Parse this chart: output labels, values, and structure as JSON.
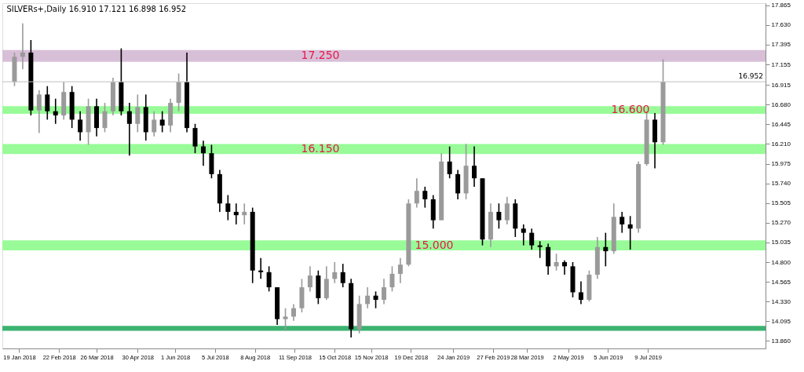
{
  "chart_data": {
    "type": "candlestick",
    "title": "SILVERs+,Daily  16.910 17.121 16.898 16.952",
    "x": [
      "2018-01-15",
      "2018-01-22",
      "2018-01-29",
      "2018-02-05",
      "2018-02-12",
      "2018-02-19",
      "2018-02-26",
      "2018-03-05",
      "2018-03-12",
      "2018-03-19",
      "2018-03-26",
      "2018-04-02",
      "2018-04-09",
      "2018-04-16",
      "2018-04-23",
      "2018-04-30",
      "2018-05-07",
      "2018-05-14",
      "2018-05-21",
      "2018-05-28",
      "2018-06-04",
      "2018-06-11",
      "2018-06-18",
      "2018-06-25",
      "2018-07-02",
      "2018-07-09",
      "2018-07-16",
      "2018-07-23",
      "2018-07-30",
      "2018-08-06",
      "2018-08-13",
      "2018-08-20",
      "2018-08-27",
      "2018-09-03",
      "2018-09-10",
      "2018-09-17",
      "2018-09-24",
      "2018-10-01",
      "2018-10-08",
      "2018-10-15",
      "2018-10-22",
      "2018-10-29",
      "2018-11-05",
      "2018-11-12",
      "2018-11-19",
      "2018-11-26",
      "2018-12-03",
      "2018-12-10",
      "2018-12-17",
      "2018-12-24",
      "2018-12-31",
      "2019-01-07",
      "2019-01-14",
      "2019-01-21",
      "2019-01-28",
      "2019-02-04",
      "2019-02-11",
      "2019-02-18",
      "2019-02-25",
      "2019-03-04",
      "2019-03-11",
      "2019-03-18",
      "2019-03-25",
      "2019-04-01",
      "2019-04-08",
      "2019-04-15",
      "2019-04-22",
      "2019-04-29",
      "2019-05-06",
      "2019-05-13",
      "2019-05-20",
      "2019-05-27",
      "2019-06-03",
      "2019-06-10",
      "2019-06-17",
      "2019-06-24",
      "2019-07-01",
      "2019-07-08",
      "2019-07-15",
      "2019-07-22"
    ],
    "ohlc": [
      [
        16.95,
        17.3,
        16.9,
        17.25
      ],
      [
        17.25,
        17.65,
        17.1,
        17.3
      ],
      [
        17.3,
        17.45,
        16.55,
        16.61
      ],
      [
        16.61,
        16.85,
        16.34,
        16.8
      ],
      [
        16.8,
        16.9,
        16.5,
        16.6
      ],
      [
        16.6,
        16.75,
        16.45,
        16.55
      ],
      [
        16.55,
        16.95,
        16.5,
        16.83
      ],
      [
        16.83,
        16.9,
        16.4,
        16.5
      ],
      [
        16.5,
        16.6,
        16.25,
        16.35
      ],
      [
        16.35,
        16.75,
        16.2,
        16.66
      ],
      [
        16.66,
        16.75,
        16.3,
        16.4
      ],
      [
        16.4,
        16.7,
        16.35,
        16.6
      ],
      [
        16.6,
        17.0,
        16.55,
        16.95
      ],
      [
        16.95,
        17.35,
        16.55,
        16.6
      ],
      [
        16.6,
        16.7,
        16.07,
        16.45
      ],
      [
        16.45,
        16.8,
        16.35,
        16.65
      ],
      [
        16.65,
        16.8,
        16.25,
        16.35
      ],
      [
        16.35,
        16.6,
        16.3,
        16.5
      ],
      [
        16.5,
        16.6,
        16.35,
        16.43
      ],
      [
        16.43,
        16.75,
        16.35,
        16.7
      ],
      [
        16.7,
        17.05,
        16.6,
        16.95
      ],
      [
        16.95,
        17.3,
        16.35,
        16.4
      ],
      [
        16.4,
        16.45,
        16.1,
        16.18
      ],
      [
        16.18,
        16.25,
        15.95,
        16.1
      ],
      [
        16.1,
        16.2,
        15.8,
        15.85
      ],
      [
        15.85,
        15.9,
        15.4,
        15.5
      ],
      [
        15.5,
        15.6,
        15.3,
        15.4
      ],
      [
        15.4,
        15.5,
        15.25,
        15.36
      ],
      [
        15.36,
        15.5,
        15.25,
        15.4
      ],
      [
        15.4,
        15.45,
        14.55,
        14.7
      ],
      [
        14.7,
        14.85,
        14.6,
        14.68
      ],
      [
        14.68,
        14.75,
        14.45,
        14.5
      ],
      [
        14.5,
        14.5,
        14.05,
        14.12
      ],
      [
        14.12,
        14.25,
        13.98,
        14.15
      ],
      [
        14.15,
        14.3,
        14.1,
        14.25
      ],
      [
        14.25,
        14.6,
        14.2,
        14.5
      ],
      [
        14.5,
        14.75,
        14.45,
        14.64
      ],
      [
        14.64,
        14.7,
        14.3,
        14.37
      ],
      [
        14.37,
        14.75,
        14.35,
        14.6
      ],
      [
        14.6,
        14.8,
        14.55,
        14.68
      ],
      [
        14.68,
        14.78,
        14.5,
        14.55
      ],
      [
        14.55,
        14.6,
        13.9,
        14.0
      ],
      [
        14.0,
        14.4,
        13.95,
        14.3
      ],
      [
        14.3,
        14.5,
        14.25,
        14.4
      ],
      [
        14.4,
        14.45,
        14.25,
        14.35
      ],
      [
        14.35,
        14.6,
        14.3,
        14.5
      ],
      [
        14.5,
        14.75,
        14.45,
        14.66
      ],
      [
        14.66,
        14.85,
        14.55,
        14.77
      ],
      [
        14.77,
        15.55,
        14.75,
        15.5
      ],
      [
        15.5,
        15.8,
        15.45,
        15.65
      ],
      [
        15.65,
        15.7,
        15.45,
        15.55
      ],
      [
        15.55,
        15.6,
        15.2,
        15.3
      ],
      [
        15.3,
        16.1,
        15.3,
        16.0
      ],
      [
        16.0,
        16.18,
        15.8,
        15.85
      ],
      [
        15.85,
        15.9,
        15.55,
        15.62
      ],
      [
        15.62,
        16.21,
        15.55,
        15.95
      ],
      [
        15.95,
        16.18,
        15.7,
        15.8
      ],
      [
        15.8,
        15.8,
        15.0,
        15.07
      ],
      [
        15.07,
        15.5,
        14.98,
        15.4
      ],
      [
        15.4,
        15.5,
        15.2,
        15.3
      ],
      [
        15.3,
        15.58,
        15.25,
        15.5
      ],
      [
        15.5,
        15.55,
        15.1,
        15.2
      ],
      [
        15.2,
        15.25,
        15.0,
        15.15
      ],
      [
        15.15,
        15.2,
        14.95,
        15.0
      ],
      [
        15.0,
        15.05,
        14.85,
        14.98
      ],
      [
        14.98,
        15.02,
        14.65,
        14.75
      ],
      [
        14.75,
        14.9,
        14.7,
        14.8
      ],
      [
        14.8,
        14.82,
        14.65,
        14.75
      ],
      [
        14.75,
        14.8,
        14.38,
        14.44
      ],
      [
        14.44,
        14.57,
        14.3,
        14.35
      ],
      [
        14.35,
        14.7,
        14.33,
        14.65
      ],
      [
        14.65,
        15.1,
        14.6,
        14.98
      ],
      [
        14.98,
        15.15,
        14.75,
        14.93
      ],
      [
        14.93,
        15.5,
        14.9,
        15.34
      ],
      [
        15.34,
        15.4,
        15.15,
        15.25
      ],
      [
        15.25,
        15.35,
        14.95,
        15.2
      ],
      [
        15.2,
        16.0,
        15.15,
        15.97
      ],
      [
        15.97,
        16.6,
        15.95,
        16.5
      ],
      [
        16.5,
        16.58,
        15.92,
        16.23
      ],
      [
        16.23,
        17.22,
        16.2,
        16.952
      ]
    ],
    "xlim": [
      "2018-01-08",
      "2019-10-14"
    ],
    "xticks": [
      {
        "value": "2018-01-19",
        "label": "19 Jan 2018"
      },
      {
        "value": "2018-02-22",
        "label": "22 Feb 2018"
      },
      {
        "value": "2018-03-26",
        "label": "26 Mar 2018"
      },
      {
        "value": "2018-04-30",
        "label": "30 Apr 2018"
      },
      {
        "value": "2018-06-01",
        "label": "1 Jun 2018"
      },
      {
        "value": "2018-07-05",
        "label": "5 Jul 2018"
      },
      {
        "value": "2018-08-08",
        "label": "8 Aug 2018"
      },
      {
        "value": "2018-09-11",
        "label": "11 Sep 2018"
      },
      {
        "value": "2018-10-15",
        "label": "15 Oct 2018"
      },
      {
        "value": "2018-11-15",
        "label": "15 Nov 2018"
      },
      {
        "value": "2018-12-19",
        "label": "19 Dec 2018"
      },
      {
        "value": "2019-01-24",
        "label": "24 Jan 2019"
      },
      {
        "value": "2019-02-27",
        "label": "27 Feb 2019"
      },
      {
        "value": "2019-03-28",
        "label": "28 Mar 2019"
      },
      {
        "value": "2019-05-02",
        "label": "2 May 2019"
      },
      {
        "value": "2019-06-05",
        "label": "5 Jun 2019"
      },
      {
        "value": "2019-07-09",
        "label": "9 Jul 2019"
      }
    ],
    "ylim": [
      13.77,
      17.89
    ],
    "yticks": [
      {
        "value": 13.86,
        "label": "13.860"
      },
      {
        "value": 14.095,
        "label": "14.095"
      },
      {
        "value": 14.33,
        "label": "14.330"
      },
      {
        "value": 14.565,
        "label": "14.565"
      },
      {
        "value": 14.8,
        "label": "14.800"
      },
      {
        "value": 15.035,
        "label": "15.035"
      },
      {
        "value": 15.27,
        "label": "15.270"
      },
      {
        "value": 15.505,
        "label": "15.505"
      },
      {
        "value": 15.74,
        "label": "15.740"
      },
      {
        "value": 15.975,
        "label": "15.975"
      },
      {
        "value": 16.21,
        "label": "16.210"
      },
      {
        "value": 16.445,
        "label": "16.445"
      },
      {
        "value": 16.68,
        "label": "16.680"
      },
      {
        "value": 16.915,
        "label": "16.915"
      },
      {
        "value": 17.155,
        "label": "17.155"
      },
      {
        "value": 17.395,
        "label": "17.395"
      },
      {
        "value": 17.63,
        "label": "17.630"
      },
      {
        "value": 17.865,
        "label": "17.865"
      }
    ],
    "bands": [
      {
        "axis": "y",
        "from": 17.19,
        "to": 17.33,
        "label": "17.250",
        "color": "#d8bfd8"
      },
      {
        "axis": "y",
        "from": 16.57,
        "to": 16.66,
        "label": "16.600",
        "color": "#98fb98"
      },
      {
        "axis": "y",
        "from": 16.09,
        "to": 16.21,
        "label": "16.150",
        "color": "#98fb98"
      },
      {
        "axis": "y",
        "from": 14.94,
        "to": 15.06,
        "label": "15.000",
        "color": "#98fb98"
      },
      {
        "axis": "y",
        "from": 13.98,
        "to": 14.04,
        "label": null,
        "color": "#3cb371"
      }
    ],
    "ref_lines": [
      {
        "axis": "y",
        "value": 16.952,
        "label": "16.952",
        "color": "#c0c0c0"
      }
    ],
    "grid": false
  }
}
